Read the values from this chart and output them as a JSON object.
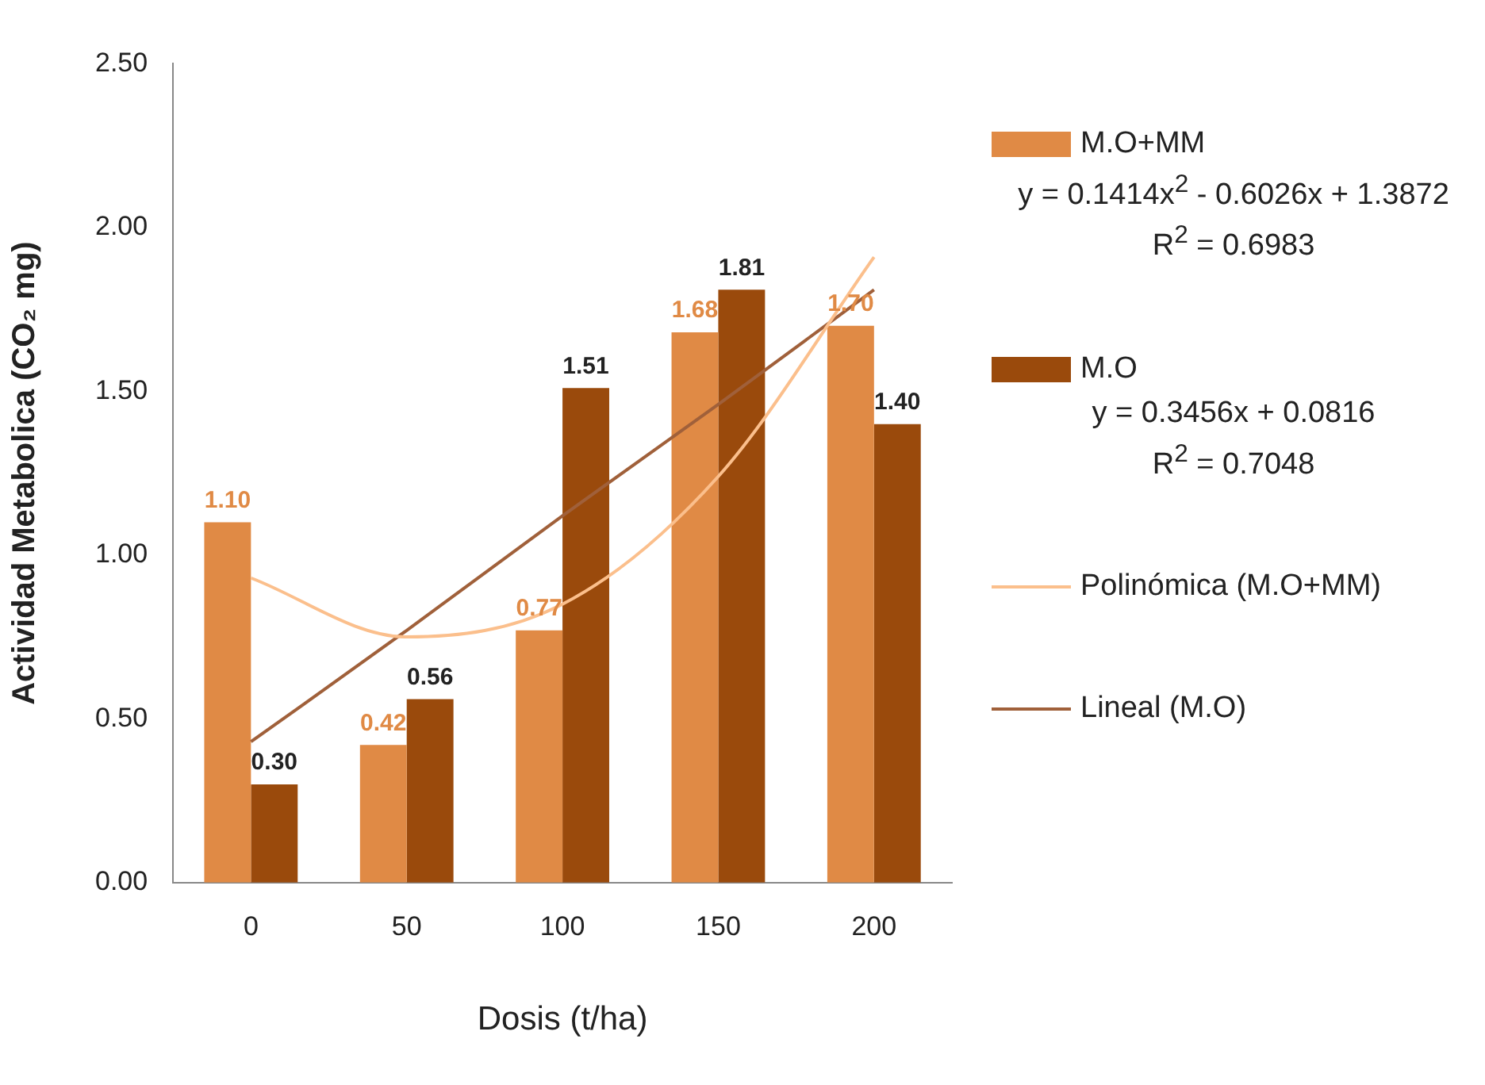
{
  "chart_data": {
    "type": "bar",
    "xlabel": "Dosis (t/ha)",
    "ylabel": "Actividad Metabolica (CO₂ mg)",
    "categories": [
      "0",
      "50",
      "100",
      "150",
      "200"
    ],
    "series": [
      {
        "name": "M.O+MM",
        "color": "#e08a45",
        "values": [
          1.1,
          0.42,
          0.77,
          1.68,
          1.7
        ],
        "value_labels": [
          "1.10",
          "0.42",
          "0.77",
          "1.68",
          "1.70"
        ]
      },
      {
        "name": "M.O",
        "color": "#9a4a0c",
        "values": [
          0.3,
          0.56,
          1.51,
          1.81,
          1.4
        ],
        "value_labels": [
          "0.30",
          "0.56",
          "1.51",
          "1.81",
          "1.40"
        ]
      },
      {
        "name": "Polinómica (M.O+MM)",
        "type": "line",
        "color": "#fbbf8c",
        "values": [
          0.93,
          0.75,
          0.85,
          1.24,
          1.91
        ]
      },
      {
        "name": "Lineal (M.O)",
        "type": "line",
        "color": "#a0603a",
        "values": [
          0.43,
          0.77,
          1.12,
          1.46,
          1.81
        ]
      }
    ],
    "ylim": [
      0,
      2.5
    ],
    "yticks": [
      {
        "value": 0,
        "label": "0.00"
      },
      {
        "value": 0.5,
        "label": "0.50"
      },
      {
        "value": 1,
        "label": "1.00"
      },
      {
        "value": 1.5,
        "label": "1.50"
      },
      {
        "value": 2,
        "label": "2.00"
      },
      {
        "value": 2.5,
        "label": "2.50"
      }
    ],
    "grid": false,
    "legend": "right",
    "marker": "none",
    "annotations": [
      "y = 0.1414x$^{2}$ - 0.6026x + 1.3872",
      "R$^{2}$ = 0.6983",
      "y = 0.3456x + 0.0816",
      "R$^{2}$ = 0.7048"
    ]
  }
}
